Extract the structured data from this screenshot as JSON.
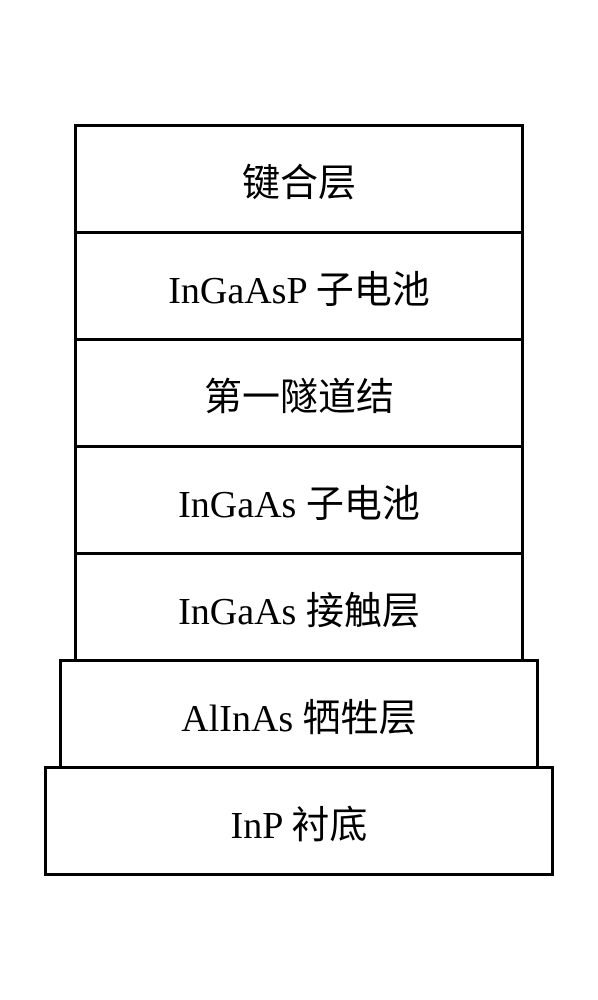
{
  "diagram": {
    "type": "layer-stack",
    "background_color": "#ffffff",
    "border_color": "#000000",
    "border_width": 3,
    "text_color": "#000000",
    "font_size": 38,
    "font_family": "Times New Roman, SimSun, serif",
    "layer_height": 110,
    "layers": [
      {
        "label": "键合层",
        "width_class": "w1"
      },
      {
        "label": "InGaAsP 子电池",
        "width_class": "w1"
      },
      {
        "label": "第一隧道结",
        "width_class": "w1"
      },
      {
        "label": "InGaAs  子电池",
        "width_class": "w1"
      },
      {
        "label": "InGaAs  接触层",
        "width_class": "w1"
      },
      {
        "label": "AlInAs  牺牲层",
        "width_class": "w2"
      },
      {
        "label": "InP  衬底",
        "width_class": "w3"
      }
    ]
  }
}
